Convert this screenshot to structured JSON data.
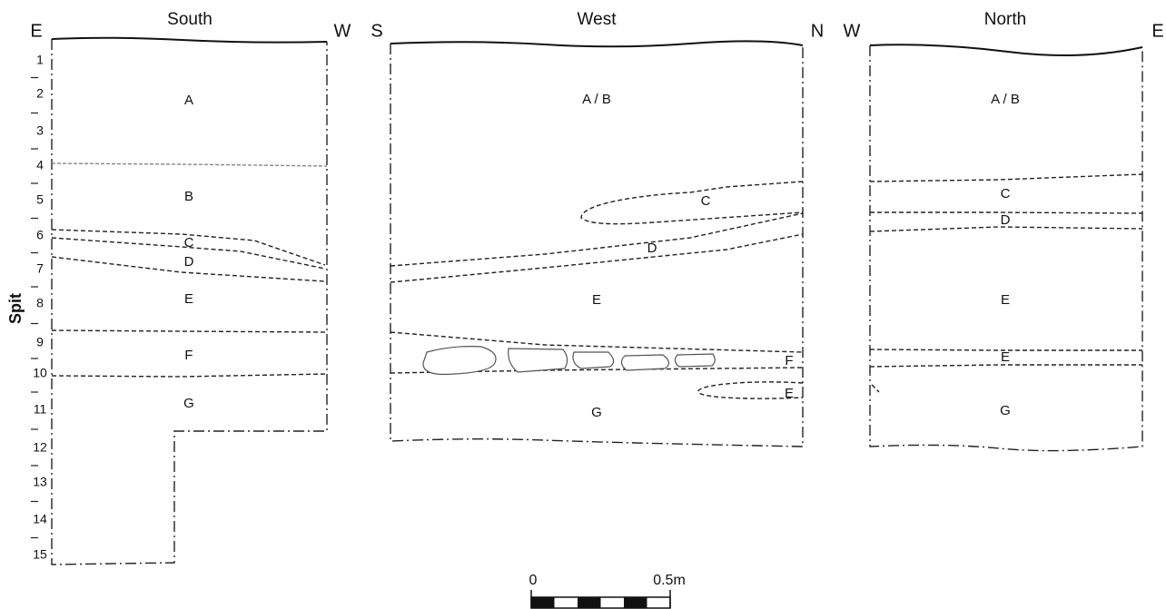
{
  "spit_axis": {
    "label": "Spit",
    "spits": [
      "1",
      "2",
      "3",
      "4",
      "5",
      "6",
      "7",
      "8",
      "9",
      "10",
      "11",
      "12",
      "13",
      "14",
      "15"
    ]
  },
  "sections": [
    {
      "title": "South",
      "left": "E",
      "right": "W",
      "layers": [
        "A",
        "B",
        "C",
        "D",
        "E",
        "F",
        "G"
      ]
    },
    {
      "title": "West",
      "left": "S",
      "right": "N",
      "layers": [
        "A / B",
        "C",
        "D",
        "E",
        "F",
        "E",
        "G"
      ]
    },
    {
      "title": "North",
      "left": "W",
      "right": "E",
      "layers": [
        "A / B",
        "C",
        "D",
        "E",
        "E",
        "G"
      ]
    }
  ],
  "scale": {
    "start": "0",
    "end": "0.5m"
  }
}
